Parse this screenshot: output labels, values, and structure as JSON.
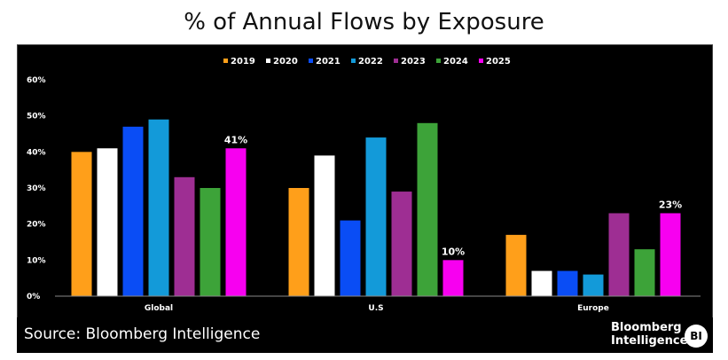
{
  "chart_data": {
    "type": "bar",
    "title": "% of Annual Flows by Exposure",
    "categories": [
      "Global",
      "U.S",
      "Europe"
    ],
    "series": [
      {
        "name": "2019",
        "color": "#ff9f1a",
        "values": [
          40,
          30,
          17
        ]
      },
      {
        "name": "2020",
        "color": "#ffffff",
        "values": [
          41,
          39,
          7
        ]
      },
      {
        "name": "2021",
        "color": "#0a4df5",
        "values": [
          47,
          21,
          7
        ]
      },
      {
        "name": "2022",
        "color": "#139ad9",
        "values": [
          49,
          44,
          6
        ]
      },
      {
        "name": "2023",
        "color": "#9e2e93",
        "values": [
          33,
          29,
          23
        ]
      },
      {
        "name": "2024",
        "color": "#3da339",
        "values": [
          30,
          48,
          13
        ]
      },
      {
        "name": "2025",
        "color": "#f700f0",
        "values": [
          41,
          10,
          23
        ]
      }
    ],
    "data_labels": [
      {
        "category_index": 0,
        "series_index": 6,
        "text": "41%"
      },
      {
        "category_index": 1,
        "series_index": 6,
        "text": "10%"
      },
      {
        "category_index": 2,
        "series_index": 6,
        "text": "23%"
      }
    ],
    "y_ticks": [
      "0%",
      "10%",
      "20%",
      "30%",
      "40%",
      "50%",
      "60%"
    ],
    "ylim": [
      0,
      60
    ],
    "xlabel": "",
    "ylabel": "",
    "legend_position": "top-center",
    "grid": false
  },
  "footer": {
    "source": "Source: Bloomberg Intelligence",
    "brand_line1": "Bloomberg",
    "brand_line2": "Intelligence",
    "logo_text": "BI"
  }
}
